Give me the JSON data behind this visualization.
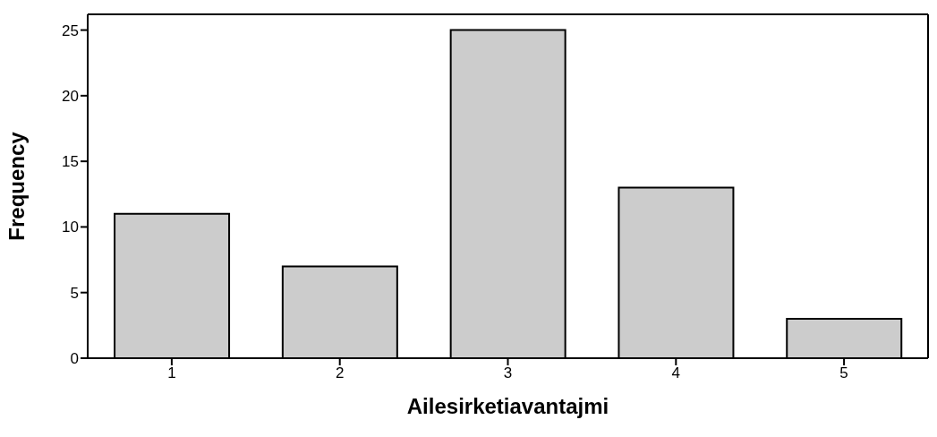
{
  "chart_data": {
    "type": "bar",
    "xlabel": "Ailesirketiavantajmi",
    "ylabel": "Frequency",
    "categories": [
      "1",
      "2",
      "3",
      "4",
      "5"
    ],
    "values": [
      11,
      7,
      25,
      13,
      3
    ],
    "color": "#cccccc",
    "ylim": [
      0,
      26.2
    ],
    "yticks": [
      0,
      5,
      10,
      15,
      20,
      25
    ],
    "grid": false,
    "legend": false
  }
}
